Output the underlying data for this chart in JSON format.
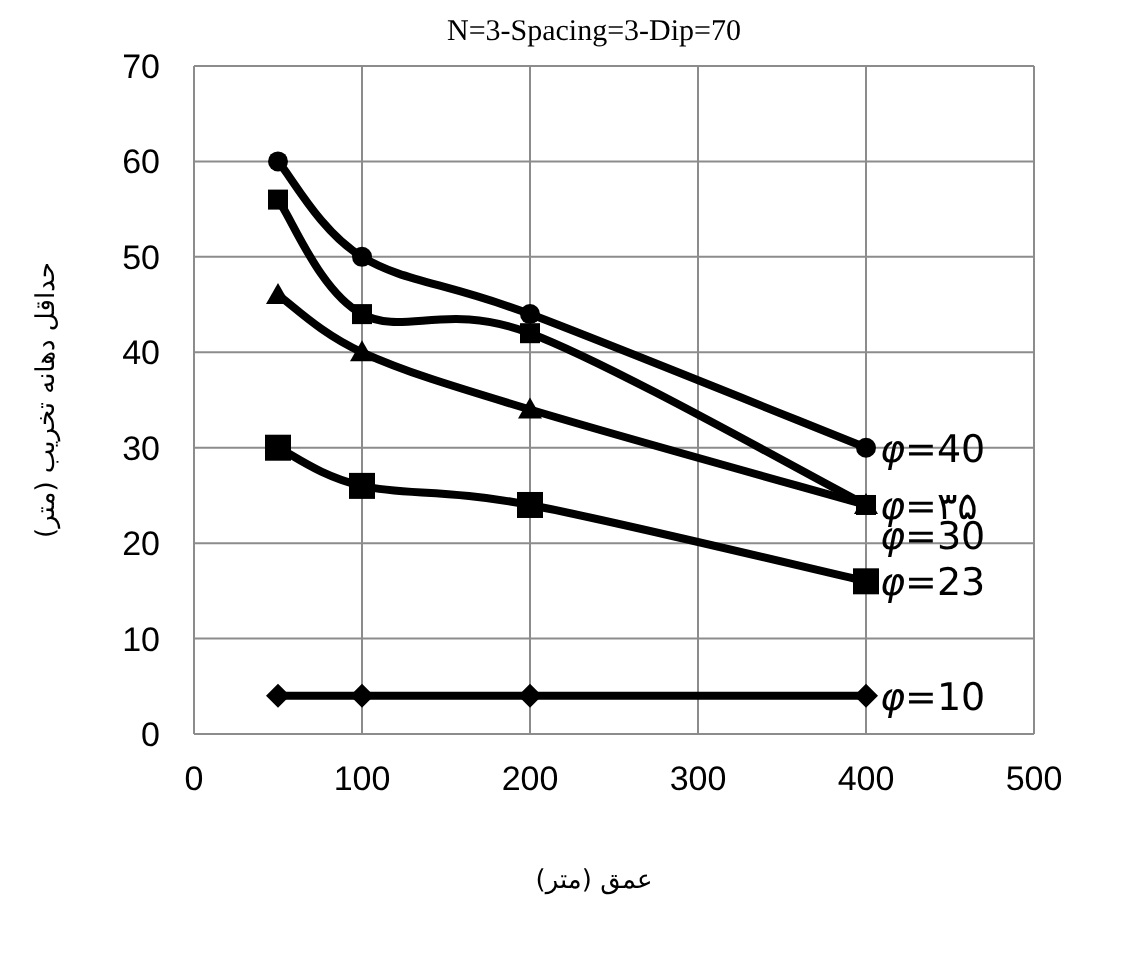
{
  "chart_data": {
    "type": "line",
    "title": "N=3-Spacing=3-Dip=70",
    "xlabel": "عمق (متر)",
    "ylabel": "حداقل دهانه تخریب (متر)",
    "x": [
      50,
      100,
      200,
      400
    ],
    "series": [
      {
        "name": "*φ*=40",
        "color": "#000000",
        "marker": "circle",
        "values": [
          60,
          50,
          44,
          30
        ]
      },
      {
        "name": "*φ*=۳۵",
        "color": "#000000",
        "marker": "square",
        "values": [
          56,
          44,
          42,
          24
        ]
      },
      {
        "name": "*φ*=30",
        "color": "#000000",
        "marker": "triangle",
        "values": [
          46,
          40,
          34,
          24
        ]
      },
      {
        "name": "*φ*=23",
        "color": "#000000",
        "marker": "square",
        "values": [
          30,
          26,
          24,
          16
        ]
      },
      {
        "name": "*φ*=10",
        "color": "#000000",
        "marker": "diamond",
        "values": [
          4,
          4,
          4,
          4
        ]
      }
    ],
    "xlim": [
      0,
      500
    ],
    "xticks": [
      0,
      100,
      200,
      300,
      400,
      500
    ],
    "ylim": [
      0,
      70
    ],
    "yticks": [
      0,
      10,
      20,
      30,
      40,
      50,
      60,
      70
    ],
    "grid": true,
    "line_style": "solid"
  }
}
